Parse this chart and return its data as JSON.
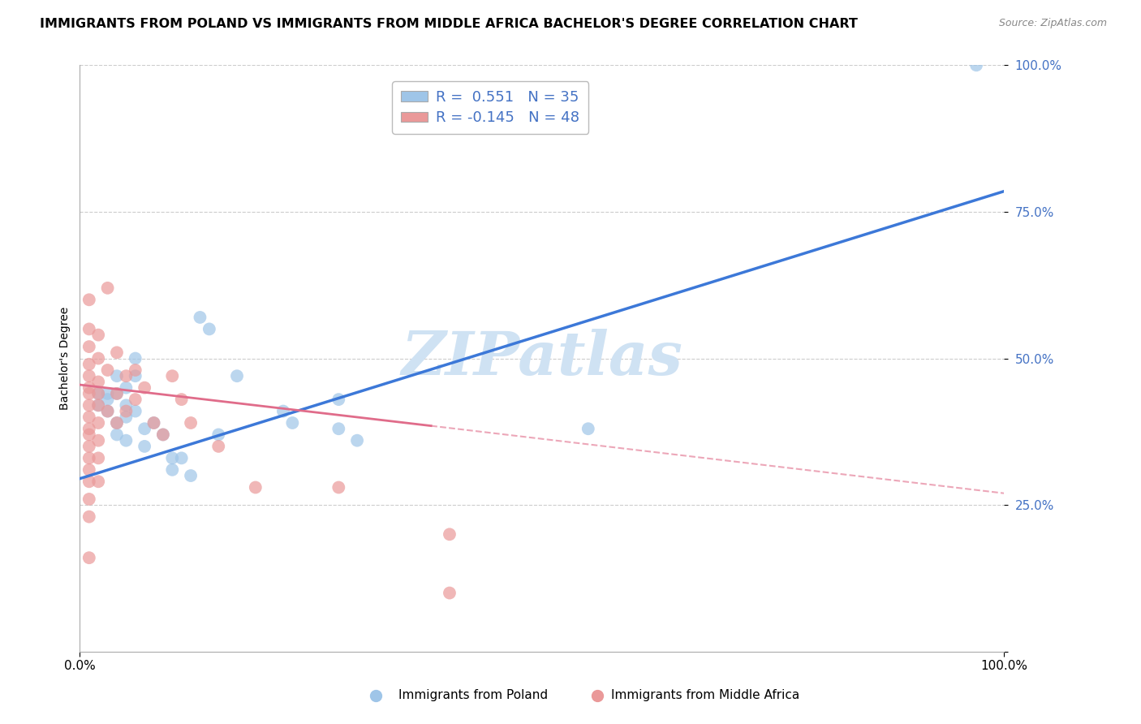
{
  "title": "IMMIGRANTS FROM POLAND VS IMMIGRANTS FROM MIDDLE AFRICA BACHELOR'S DEGREE CORRELATION CHART",
  "source_text": "Source: ZipAtlas.com",
  "ylabel": "Bachelor's Degree",
  "r1": "0.551",
  "n1": "35",
  "r2": "-0.145",
  "n2": "48",
  "color_blue": "#9fc5e8",
  "color_pink": "#ea9999",
  "color_blue_line": "#3c78d8",
  "color_pink_line": "#e06c8a",
  "watermark": "ZIPatlas",
  "watermark_color": "#cfe2f3",
  "blue_dots": [
    [
      0.02,
      0.44
    ],
    [
      0.02,
      0.42
    ],
    [
      0.03,
      0.44
    ],
    [
      0.03,
      0.43
    ],
    [
      0.03,
      0.41
    ],
    [
      0.04,
      0.47
    ],
    [
      0.04,
      0.44
    ],
    [
      0.04,
      0.39
    ],
    [
      0.04,
      0.37
    ],
    [
      0.05,
      0.45
    ],
    [
      0.05,
      0.42
    ],
    [
      0.05,
      0.4
    ],
    [
      0.05,
      0.36
    ],
    [
      0.06,
      0.5
    ],
    [
      0.06,
      0.47
    ],
    [
      0.06,
      0.41
    ],
    [
      0.07,
      0.38
    ],
    [
      0.07,
      0.35
    ],
    [
      0.08,
      0.39
    ],
    [
      0.09,
      0.37
    ],
    [
      0.1,
      0.33
    ],
    [
      0.1,
      0.31
    ],
    [
      0.11,
      0.33
    ],
    [
      0.12,
      0.3
    ],
    [
      0.13,
      0.57
    ],
    [
      0.14,
      0.55
    ],
    [
      0.15,
      0.37
    ],
    [
      0.17,
      0.47
    ],
    [
      0.22,
      0.41
    ],
    [
      0.23,
      0.39
    ],
    [
      0.28,
      0.43
    ],
    [
      0.28,
      0.38
    ],
    [
      0.3,
      0.36
    ],
    [
      0.55,
      0.38
    ],
    [
      0.97,
      1.0
    ]
  ],
  "pink_dots": [
    [
      0.01,
      0.6
    ],
    [
      0.01,
      0.55
    ],
    [
      0.01,
      0.52
    ],
    [
      0.01,
      0.49
    ],
    [
      0.01,
      0.47
    ],
    [
      0.01,
      0.45
    ],
    [
      0.01,
      0.44
    ],
    [
      0.01,
      0.42
    ],
    [
      0.01,
      0.4
    ],
    [
      0.01,
      0.38
    ],
    [
      0.01,
      0.37
    ],
    [
      0.01,
      0.35
    ],
    [
      0.01,
      0.33
    ],
    [
      0.01,
      0.31
    ],
    [
      0.01,
      0.29
    ],
    [
      0.01,
      0.26
    ],
    [
      0.01,
      0.23
    ],
    [
      0.01,
      0.16
    ],
    [
      0.02,
      0.54
    ],
    [
      0.02,
      0.5
    ],
    [
      0.02,
      0.46
    ],
    [
      0.02,
      0.44
    ],
    [
      0.02,
      0.42
    ],
    [
      0.02,
      0.39
    ],
    [
      0.02,
      0.36
    ],
    [
      0.02,
      0.33
    ],
    [
      0.02,
      0.29
    ],
    [
      0.03,
      0.62
    ],
    [
      0.03,
      0.48
    ],
    [
      0.03,
      0.41
    ],
    [
      0.04,
      0.51
    ],
    [
      0.04,
      0.44
    ],
    [
      0.04,
      0.39
    ],
    [
      0.05,
      0.47
    ],
    [
      0.05,
      0.41
    ],
    [
      0.06,
      0.48
    ],
    [
      0.06,
      0.43
    ],
    [
      0.07,
      0.45
    ],
    [
      0.08,
      0.39
    ],
    [
      0.09,
      0.37
    ],
    [
      0.1,
      0.47
    ],
    [
      0.11,
      0.43
    ],
    [
      0.12,
      0.39
    ],
    [
      0.15,
      0.35
    ],
    [
      0.19,
      0.28
    ],
    [
      0.28,
      0.28
    ],
    [
      0.4,
      0.2
    ],
    [
      0.4,
      0.1
    ]
  ],
  "blue_line": {
    "x0": 0.0,
    "y0": 0.295,
    "x1": 1.0,
    "y1": 0.785
  },
  "pink_line_solid": {
    "x0": 0.0,
    "y0": 0.455,
    "x1": 0.38,
    "y1": 0.385
  },
  "pink_line_dashed": {
    "x0": 0.38,
    "y0": 0.385,
    "x1": 1.0,
    "y1": 0.27
  },
  "xlim": [
    0.0,
    1.0
  ],
  "ylim": [
    0.0,
    1.0
  ],
  "yticks": [
    0.0,
    0.25,
    0.5,
    0.75,
    1.0
  ],
  "ytick_labels": [
    "",
    "25.0%",
    "50.0%",
    "75.0%",
    "100.0%"
  ],
  "xtick_labels_pos": [
    0.0,
    1.0
  ],
  "xtick_labels": [
    "0.0%",
    "100.0%"
  ],
  "grid_color": "#cccccc",
  "bg_color": "#ffffff",
  "title_fontsize": 11.5,
  "legend_label1": "Immigrants from Poland",
  "legend_label2": "Immigrants from Middle Africa"
}
